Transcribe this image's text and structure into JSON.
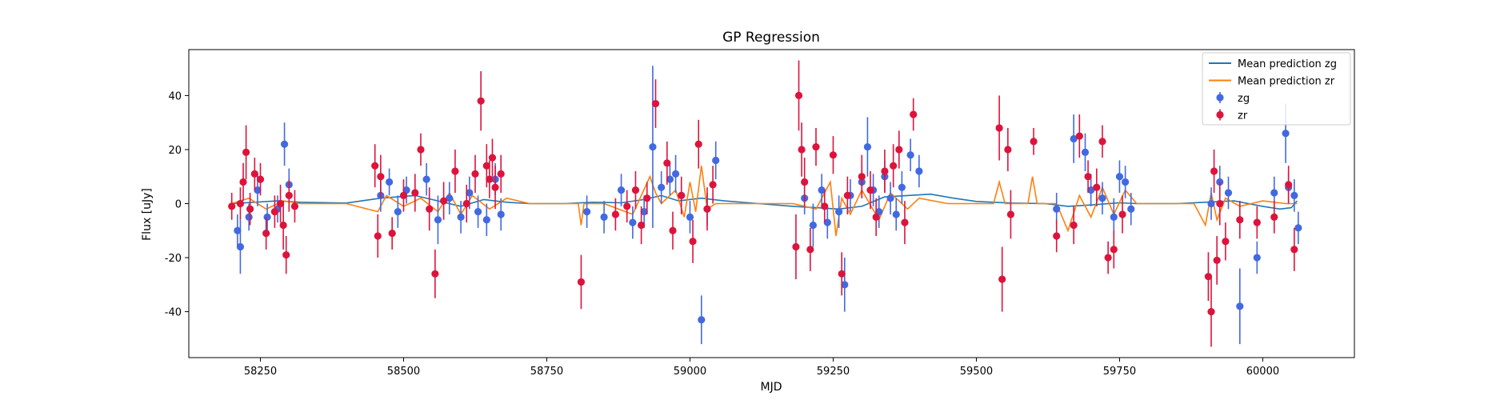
{
  "chart_data": {
    "type": "scatter",
    "title": "GP Regression",
    "xlabel": "MJD",
    "ylabel": "Flux [uJy]",
    "xlim": [
      58125,
      60160
    ],
    "ylim": [
      -57,
      57
    ],
    "x_ticks": [
      58250,
      58500,
      58750,
      59000,
      59250,
      59500,
      59750,
      60000
    ],
    "y_ticks": [
      -40,
      -20,
      0,
      20,
      40
    ],
    "grid": false,
    "legend_position": "top-right",
    "colors": {
      "zg": "#4169e1",
      "zr": "#dc143c",
      "mean_zg": "#1f77b4",
      "mean_zr": "#ff7f0e"
    },
    "series": [
      {
        "name": "Mean prediction zg",
        "kind": "line",
        "x": [
          58200,
          58280,
          58320,
          58400,
          58460,
          58520,
          58560,
          58600,
          58640,
          58680,
          58720,
          58780,
          58830,
          58880,
          58920,
          58950,
          58980,
          59020,
          59060,
          59120,
          59180,
          59220,
          59260,
          59300,
          59340,
          59380,
          59420,
          59460,
          59500,
          59560,
          59620,
          59660,
          59700,
          59750,
          59780,
          59850,
          59900,
          59950,
          60000,
          60030,
          60050,
          60060
        ],
        "values": [
          0,
          1,
          0.5,
          0.2,
          2,
          3,
          1,
          -1,
          1.5,
          0.5,
          0,
          0,
          0.5,
          0.3,
          1.5,
          3,
          1,
          2,
          1,
          0,
          -1,
          -1.5,
          -2,
          -1,
          2.5,
          3,
          3.5,
          2,
          0.8,
          0.2,
          0,
          -1,
          -0.5,
          0.3,
          0,
          0,
          0.5,
          1,
          -1,
          -2,
          -1.5,
          1
        ]
      },
      {
        "name": "Mean prediction zr",
        "kind": "line",
        "x": [
          58200,
          58230,
          58260,
          58290,
          58320,
          58400,
          58455,
          58470,
          58500,
          58530,
          58560,
          58580,
          58600,
          58620,
          58650,
          58680,
          58720,
          58805,
          58810,
          58815,
          58850,
          58900,
          58930,
          58940,
          58950,
          58975,
          58990,
          59000,
          59010,
          59020,
          59030,
          59045,
          59100,
          59180,
          59220,
          59245,
          59255,
          59265,
          59280,
          59300,
          59330,
          59350,
          59380,
          59400,
          59450,
          59530,
          59540,
          59550,
          59590,
          59598,
          59606,
          59640,
          59660,
          59680,
          59700,
          59720,
          59740,
          59760,
          59780,
          59880,
          59900,
          59910,
          59920,
          59935,
          59960,
          60000,
          60040,
          60060
        ],
        "values": [
          0,
          2,
          -2,
          1,
          0,
          0,
          -3,
          3,
          -1,
          2,
          -3,
          4,
          -4,
          3,
          -2,
          2,
          0,
          0,
          -8,
          0,
          0,
          -4,
          10,
          4,
          0,
          5,
          -5,
          8,
          -3,
          14,
          -2,
          0,
          0,
          0,
          -2,
          8,
          -12,
          2,
          -4,
          5,
          -6,
          4,
          -2,
          2,
          0,
          0,
          8,
          0,
          0,
          10,
          0,
          0,
          -10,
          3,
          -5,
          6,
          -4,
          5,
          0,
          0,
          -8,
          4,
          -6,
          2,
          -1,
          1,
          0,
          0
        ]
      },
      {
        "name": "zg",
        "kind": "errorbar",
        "x": [
          58210,
          58215,
          58230,
          58245,
          58262,
          58280,
          58292,
          58300,
          58460,
          58475,
          58490,
          58505,
          58540,
          58560,
          58580,
          58600,
          58615,
          58630,
          58645,
          58660,
          58670,
          58820,
          58850,
          58880,
          58900,
          58920,
          58935,
          58950,
          58965,
          58975,
          58985,
          59000,
          59020,
          59030,
          59045,
          59200,
          59215,
          59230,
          59240,
          59260,
          59270,
          59280,
          59300,
          59310,
          59320,
          59330,
          59340,
          59350,
          59360,
          59370,
          59385,
          59400,
          59640,
          59670,
          59690,
          59700,
          59720,
          59740,
          59750,
          59760,
          59770,
          59910,
          59925,
          59940,
          59960,
          59990,
          60020,
          60040,
          60045,
          60055,
          60062
        ],
        "values": [
          -10,
          -16,
          -5,
          5,
          -5,
          -2,
          22,
          7,
          3,
          8,
          -3,
          5,
          9,
          -6,
          2,
          -5,
          4,
          -3,
          -6,
          9,
          -4,
          -3,
          -5,
          5,
          -7,
          -3,
          21,
          6,
          9,
          11,
          3,
          -5,
          -43,
          -2,
          16,
          2,
          -8,
          5,
          -7,
          -3,
          -30,
          3,
          8,
          21,
          5,
          -3,
          10,
          2,
          -4,
          6,
          18,
          12,
          -2,
          24,
          19,
          5,
          2,
          -5,
          10,
          8,
          -2,
          0,
          8,
          4,
          -38,
          -20,
          4,
          26,
          6,
          3,
          -9
        ],
        "errors": [
          6,
          10,
          5,
          6,
          5,
          5,
          8,
          6,
          6,
          5,
          6,
          5,
          6,
          9,
          6,
          6,
          6,
          6,
          6,
          6,
          6,
          6,
          6,
          6,
          6,
          6,
          30,
          6,
          6,
          7,
          6,
          6,
          9,
          6,
          7,
          6,
          8,
          6,
          6,
          6,
          10,
          6,
          6,
          11,
          6,
          6,
          6,
          6,
          6,
          6,
          6,
          6,
          6,
          9,
          7,
          6,
          6,
          7,
          6,
          6,
          6,
          6,
          6,
          6,
          14,
          6,
          6,
          11,
          6,
          6,
          6
        ]
      },
      {
        "name": "zr",
        "kind": "errorbar",
        "x": [
          58200,
          58215,
          58220,
          58225,
          58232,
          58240,
          58250,
          58260,
          58275,
          58285,
          58290,
          58295,
          58300,
          58310,
          58450,
          58455,
          58460,
          58480,
          58500,
          58520,
          58530,
          58545,
          58555,
          58570,
          58590,
          58610,
          58625,
          58635,
          58645,
          58650,
          58655,
          58660,
          58670,
          58810,
          58870,
          58890,
          58905,
          58915,
          58925,
          58940,
          58960,
          58970,
          58985,
          59005,
          59015,
          59030,
          59040,
          59185,
          59190,
          59195,
          59200,
          59210,
          59220,
          59235,
          59250,
          59265,
          59275,
          59300,
          59315,
          59325,
          59340,
          59355,
          59365,
          59375,
          59390,
          59540,
          59545,
          59555,
          59560,
          59600,
          59640,
          59670,
          59680,
          59695,
          59710,
          59720,
          59730,
          59740,
          59755,
          59905,
          59910,
          59915,
          59920,
          59925,
          59935,
          59960,
          59990,
          60020,
          60045,
          60055
        ],
        "values": [
          -1,
          0,
          8,
          19,
          -2,
          11,
          9,
          -11,
          -3,
          0,
          -8,
          -19,
          3,
          -1,
          14,
          -12,
          10,
          -11,
          3,
          4,
          20,
          -2,
          -26,
          1,
          12,
          0,
          11,
          38,
          14,
          9,
          17,
          6,
          11,
          -29,
          -4,
          -1,
          5,
          -8,
          2,
          37,
          15,
          -10,
          3,
          -14,
          22,
          -2,
          7,
          -16,
          40,
          20,
          8,
          -17,
          21,
          -1,
          18,
          -26,
          3,
          10,
          5,
          -5,
          12,
          14,
          20,
          -7,
          33,
          28,
          -28,
          20,
          -4,
          23,
          -12,
          -8,
          25,
          10,
          6,
          23,
          -20,
          -17,
          -4,
          -27,
          -40,
          12,
          -21,
          0,
          -14,
          -6,
          -7,
          -5,
          7,
          -17
        ],
        "errors": [
          5,
          6,
          7,
          10,
          6,
          6,
          6,
          6,
          6,
          7,
          9,
          7,
          6,
          6,
          8,
          8,
          8,
          6,
          6,
          7,
          6,
          8,
          9,
          7,
          8,
          7,
          7,
          11,
          8,
          7,
          7,
          8,
          7,
          10,
          6,
          6,
          7,
          7,
          6,
          9,
          8,
          7,
          7,
          8,
          9,
          8,
          7,
          12,
          13,
          10,
          9,
          8,
          7,
          6,
          7,
          8,
          7,
          8,
          7,
          7,
          8,
          8,
          7,
          8,
          6,
          12,
          12,
          8,
          9,
          5,
          6,
          7,
          8,
          6,
          7,
          6,
          6,
          7,
          7,
          9,
          13,
          8,
          9,
          8,
          7,
          7,
          6,
          6,
          7,
          8
        ]
      }
    ]
  }
}
